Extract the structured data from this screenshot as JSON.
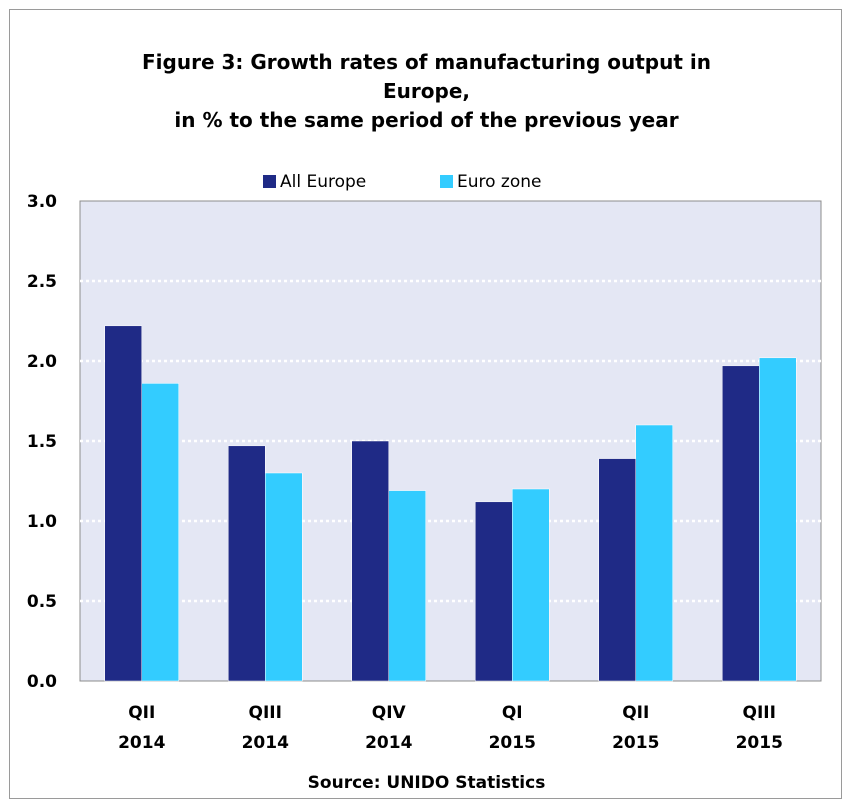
{
  "chart_data": {
    "type": "bar",
    "title": [
      "Figure 3: Growth rates of manufacturing output in",
      "Europe,",
      "in % to the same period of the previous year"
    ],
    "categories": [
      [
        "QII",
        "2014"
      ],
      [
        "QIII",
        "2014"
      ],
      [
        "QIV",
        "2014"
      ],
      [
        "QI",
        "2015"
      ],
      [
        "QII",
        "2015"
      ],
      [
        "QIII",
        "2015"
      ]
    ],
    "series": [
      {
        "name": "All Europe",
        "color": "#1f2a86",
        "values": [
          2.22,
          1.47,
          1.5,
          1.12,
          1.39,
          1.97
        ]
      },
      {
        "name": "Euro zone",
        "color": "#33ccff",
        "values": [
          1.86,
          1.3,
          1.19,
          1.2,
          1.6,
          2.02
        ]
      }
    ],
    "ylim": [
      0,
      3.0
    ],
    "yticks": [
      "0.0",
      "0.5",
      "1.0",
      "1.5",
      "2.0",
      "2.5",
      "3.0"
    ],
    "grid": true,
    "plot_background": "#e4e7f4",
    "legend_position": "top",
    "source": "Source: UNIDO Statistics"
  }
}
